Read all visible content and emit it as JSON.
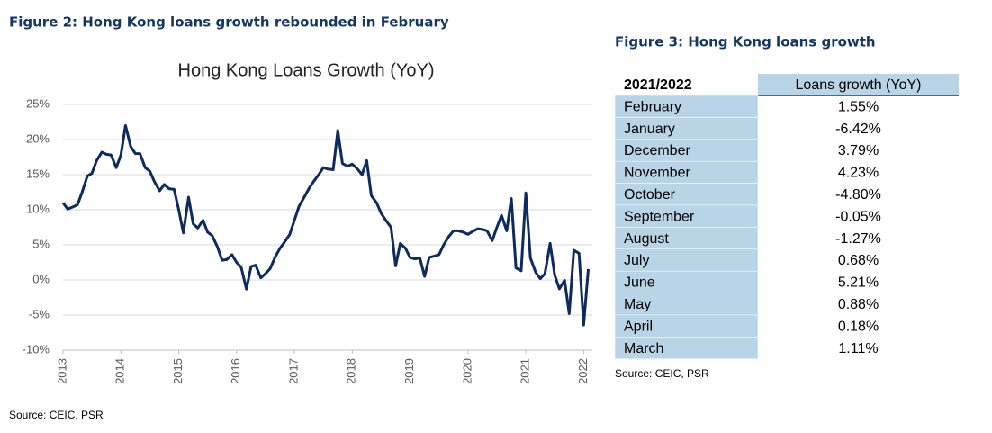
{
  "figure2_title": "Figure 2: Hong Kong loans growth rebounded in February",
  "chart_data": {
    "type": "line",
    "title": "Hong Kong Loans Growth (YoY)",
    "x": [
      2013,
      2013.08,
      2013.17,
      2013.25,
      2013.33,
      2013.42,
      2013.5,
      2013.58,
      2013.67,
      2013.75,
      2013.83,
      2013.92,
      2014,
      2014.08,
      2014.17,
      2014.25,
      2014.33,
      2014.42,
      2014.5,
      2014.58,
      2014.67,
      2014.75,
      2014.83,
      2014.92,
      2015,
      2015.08,
      2015.17,
      2015.25,
      2015.33,
      2015.42,
      2015.5,
      2015.58,
      2015.67,
      2015.75,
      2015.83,
      2015.92,
      2016,
      2016.08,
      2016.17,
      2016.25,
      2016.33,
      2016.42,
      2016.5,
      2016.58,
      2016.67,
      2016.75,
      2016.83,
      2016.92,
      2017,
      2017.08,
      2017.17,
      2017.25,
      2017.33,
      2017.42,
      2017.5,
      2017.58,
      2017.67,
      2017.75,
      2017.83,
      2017.92,
      2018,
      2018.08,
      2018.17,
      2018.25,
      2018.33,
      2018.42,
      2018.5,
      2018.58,
      2018.67,
      2018.75,
      2018.83,
      2018.92,
      2019,
      2019.08,
      2019.17,
      2019.25,
      2019.33,
      2019.42,
      2019.5,
      2019.58,
      2019.67,
      2019.75,
      2019.83,
      2019.92,
      2020,
      2020.08,
      2020.17,
      2020.25,
      2020.33,
      2020.42,
      2020.5,
      2020.58,
      2020.67,
      2020.75,
      2020.83,
      2020.92,
      2021,
      2021.08,
      2021.17,
      2021.25,
      2021.33,
      2021.42,
      2021.5,
      2021.58,
      2021.67,
      2021.75,
      2021.83,
      2021.92,
      2022,
      2022.08
    ],
    "series": [
      {
        "name": "Loans growth",
        "color": "#0f2a5c",
        "values": [
          11,
          10.1,
          10.4,
          10.7,
          12.5,
          14.8,
          15.2,
          17,
          18.2,
          17.9,
          17.8,
          16,
          17.8,
          22,
          19,
          18,
          18,
          16,
          15.5,
          14,
          12.7,
          13.6,
          13,
          12.9,
          10,
          6.7,
          11.8,
          8,
          7.4,
          8.5,
          6.8,
          6.3,
          4.7,
          2.8,
          2.9,
          3.6,
          2.5,
          1.8,
          -1.3,
          1.9,
          2.1,
          0.3,
          0.9,
          1.6,
          3.3,
          4.5,
          5.4,
          6.5,
          8.5,
          10.5,
          11.8,
          13,
          14,
          15,
          16,
          15.8,
          15.7,
          21.3,
          16.6,
          16.2,
          16.5,
          15.9,
          15,
          17,
          12,
          11,
          9.5,
          8.5,
          7.5,
          2,
          5.2,
          4.5,
          3.2,
          3,
          3.1,
          0.5,
          3.2,
          3.4,
          3.6,
          5,
          6.2,
          7,
          7,
          6.8,
          6.5,
          6.9,
          7.3,
          7.2,
          7,
          5.6,
          7.5,
          9.2,
          7,
          11.6,
          1.7,
          1.3,
          12.4,
          3.1,
          1.11,
          0.18,
          0.88,
          5.21,
          0.68,
          -1.27,
          -0.05,
          -4.8,
          4.23,
          3.79,
          -6.42,
          1.55
        ]
      }
    ],
    "xlim": [
      2013,
      2022.15
    ],
    "xticks": [
      2013,
      2014,
      2015,
      2016,
      2017,
      2018,
      2019,
      2020,
      2021,
      2022
    ],
    "ylim": [
      -10,
      25
    ],
    "yticks": [
      {
        "value": -10,
        "label": "-10%"
      },
      {
        "value": -5,
        "label": "-5%"
      },
      {
        "value": 0,
        "label": "0%"
      },
      {
        "value": 5,
        "label": "5%"
      },
      {
        "value": 10,
        "label": "10%"
      },
      {
        "value": 15,
        "label": "15%"
      },
      {
        "value": 20,
        "label": "20%"
      },
      {
        "value": 25,
        "label": "25%"
      }
    ],
    "grid": true
  },
  "figure2_source": "Source: CEIC, PSR",
  "figure3": {
    "title": "Figure 3: Hong Kong loans growth",
    "header": [
      "2021/2022",
      "Loans growth (YoY)"
    ],
    "rows": [
      [
        "February",
        "1.55%"
      ],
      [
        "January",
        "-6.42%"
      ],
      [
        "December",
        "3.79%"
      ],
      [
        "November",
        "4.23%"
      ],
      [
        "October",
        "-4.80%"
      ],
      [
        "September",
        "-0.05%"
      ],
      [
        "August",
        "-1.27%"
      ],
      [
        "July",
        "0.68%"
      ],
      [
        "June",
        "5.21%"
      ],
      [
        "May",
        "0.88%"
      ],
      [
        "April",
        "0.18%"
      ],
      [
        "March",
        "1.11%"
      ]
    ],
    "source": "Source: CEIC, PSR"
  }
}
